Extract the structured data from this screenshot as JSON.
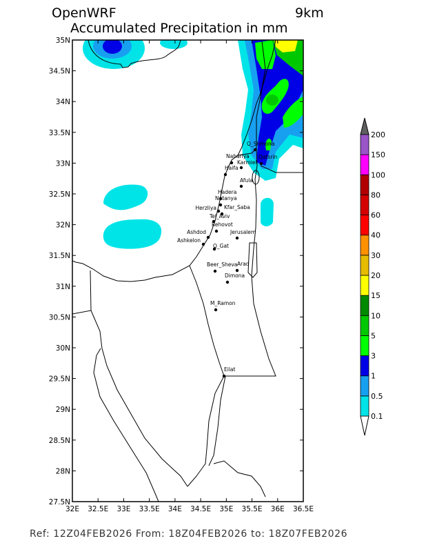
{
  "header": {
    "model": "OpenWRF",
    "resolution": "9km",
    "title": "Accumulated Precipitation in mm"
  },
  "map": {
    "lat_labels": [
      "35N",
      "34.5N",
      "34N",
      "33.5N",
      "33N",
      "32.5N",
      "32N",
      "31.5N",
      "31N",
      "30.5N",
      "30N",
      "29.5N",
      "29N",
      "28.5N",
      "28N",
      "27.5N"
    ],
    "lon_labels": [
      "32E",
      "32.5E",
      "33E",
      "33.5E",
      "34E",
      "34.5E",
      "35E",
      "35.5E",
      "36E",
      "36.5E"
    ],
    "lat_range": [
      27.5,
      35
    ],
    "lon_range": [
      32,
      36.5
    ],
    "cities": [
      "Q_Shmona",
      "Qatsrin",
      "Nahariya",
      "Karmiel",
      "Haifa",
      "Afula",
      "Hadera",
      "Netanya",
      "Herzliya",
      "Kfar_Saba",
      "Tel_Aviv",
      "Rehovot",
      "Ashdod",
      "Ashkelon",
      "Q_Gat",
      "Jerusalem",
      "Beer_Sheva",
      "Arad",
      "Dimona",
      "M_Ramon",
      "Eilat"
    ]
  },
  "colorbar": {
    "labels": [
      "0.1",
      "0.5",
      "1",
      "3",
      "5",
      "10",
      "15",
      "20",
      "30",
      "40",
      "60",
      "80",
      "100",
      "150",
      "200"
    ],
    "colors": [
      "#00e4e8",
      "#18a0f0",
      "#0000e6",
      "#00ff00",
      "#00c800",
      "#008a00",
      "#ffff00",
      "#e6bc00",
      "#ff9000",
      "#ff0000",
      "#d40000",
      "#b00000",
      "#ff00ff",
      "#9a55c8"
    ],
    "under_color": "#ffffff",
    "over_color": "#606060"
  },
  "footer": {
    "text": "Ref: 12Z04FEB2026  From: 18Z04FEB2026 to: 18Z07FEB2026"
  }
}
